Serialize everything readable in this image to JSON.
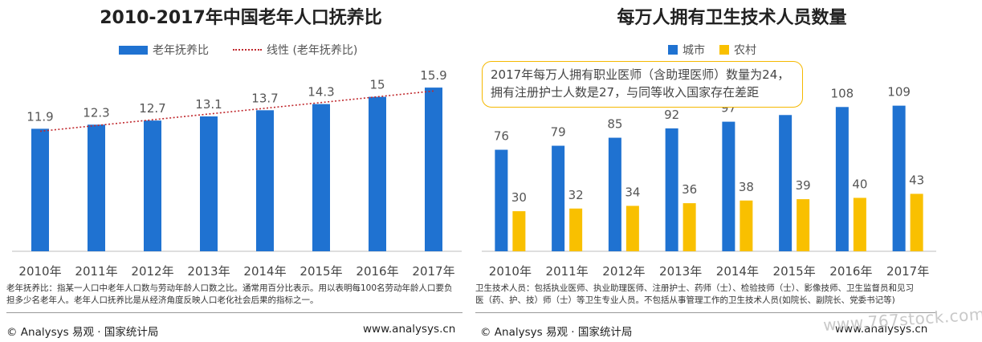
{
  "left": {
    "title": "2010-2017年中国老年人口抚养比",
    "legend": {
      "bar_label": "老年抚养比",
      "line_label": "线性 (老年抚养比)"
    },
    "note_lines": [
      "老年抚养比：指某一人口中老年人口数与劳动年龄人口数之比。通常用百分比表示。用以表明每100名劳动年龄人口要负",
      "担多少名老年人。老年人口抚养比是从经济角度反映人口老化社会后果的指标之一。"
    ],
    "footer_source": "© Analysys 易观 · 国家统计局",
    "footer_url": "www.analysys.cn"
  },
  "right": {
    "title": "每万人拥有卫生技术人员数量",
    "legend": {
      "city_label": "城市",
      "rural_label": "农村"
    },
    "callout_lines": [
      "2017年每万人拥有职业医师（含助理医师）数量为24，",
      "拥有注册护士人数是27，与同等收入国家存在差距"
    ],
    "note_lines": [
      "卫生技术人员：包括执业医师、执业助理医师、注册护士、药师（士）、检验技师（士）、影像技师、卫生监督员和见习",
      "医（药、护、技）师（士）等卫生专业人员。不包括从事管理工作的卫生技术人员(如院长、副院长、党委书记等)"
    ],
    "footer_source": "© Analysys 易观 · 国家统计局",
    "footer_url": "www.analysys.cn"
  },
  "watermark_text": "www.767stock.com",
  "colors": {
    "bar_blue": "#1f72d1",
    "bar_yellow": "#f9c000",
    "trend_red": "#c0282d"
  },
  "chart_data": [
    {
      "type": "bar",
      "title": "2010-2017年中国老年人口抚养比",
      "categories": [
        "2010年",
        "2011年",
        "2012年",
        "2013年",
        "2014年",
        "2015年",
        "2016年",
        "2017年"
      ],
      "series": [
        {
          "name": "老年抚养比",
          "values": [
            11.9,
            12.3,
            12.7,
            13.1,
            13.7,
            14.3,
            15,
            15.9
          ]
        }
      ],
      "data_labels": [
        "11.9",
        "12.3",
        "12.7",
        "13.1",
        "13.7",
        "14.3",
        "15",
        "15.9"
      ],
      "trendline": {
        "name": "线性 (老年抚养比)",
        "style": "dotted"
      },
      "ylim": [
        0,
        17
      ],
      "grid": false,
      "legend_position": "top"
    },
    {
      "type": "bar",
      "title": "每万人拥有卫生技术人员数量",
      "categories": [
        "2010年",
        "2011年",
        "2012年",
        "2013年",
        "2014年",
        "2015年",
        "2016年",
        "2017年"
      ],
      "series": [
        {
          "name": "城市",
          "values": [
            76,
            79,
            85,
            92,
            97,
            102,
            108,
            109
          ]
        },
        {
          "name": "农村",
          "values": [
            30,
            32,
            34,
            36,
            38,
            39,
            40,
            43
          ]
        }
      ],
      "ylim": [
        0,
        125
      ],
      "grid": false,
      "legend_position": "top"
    }
  ]
}
